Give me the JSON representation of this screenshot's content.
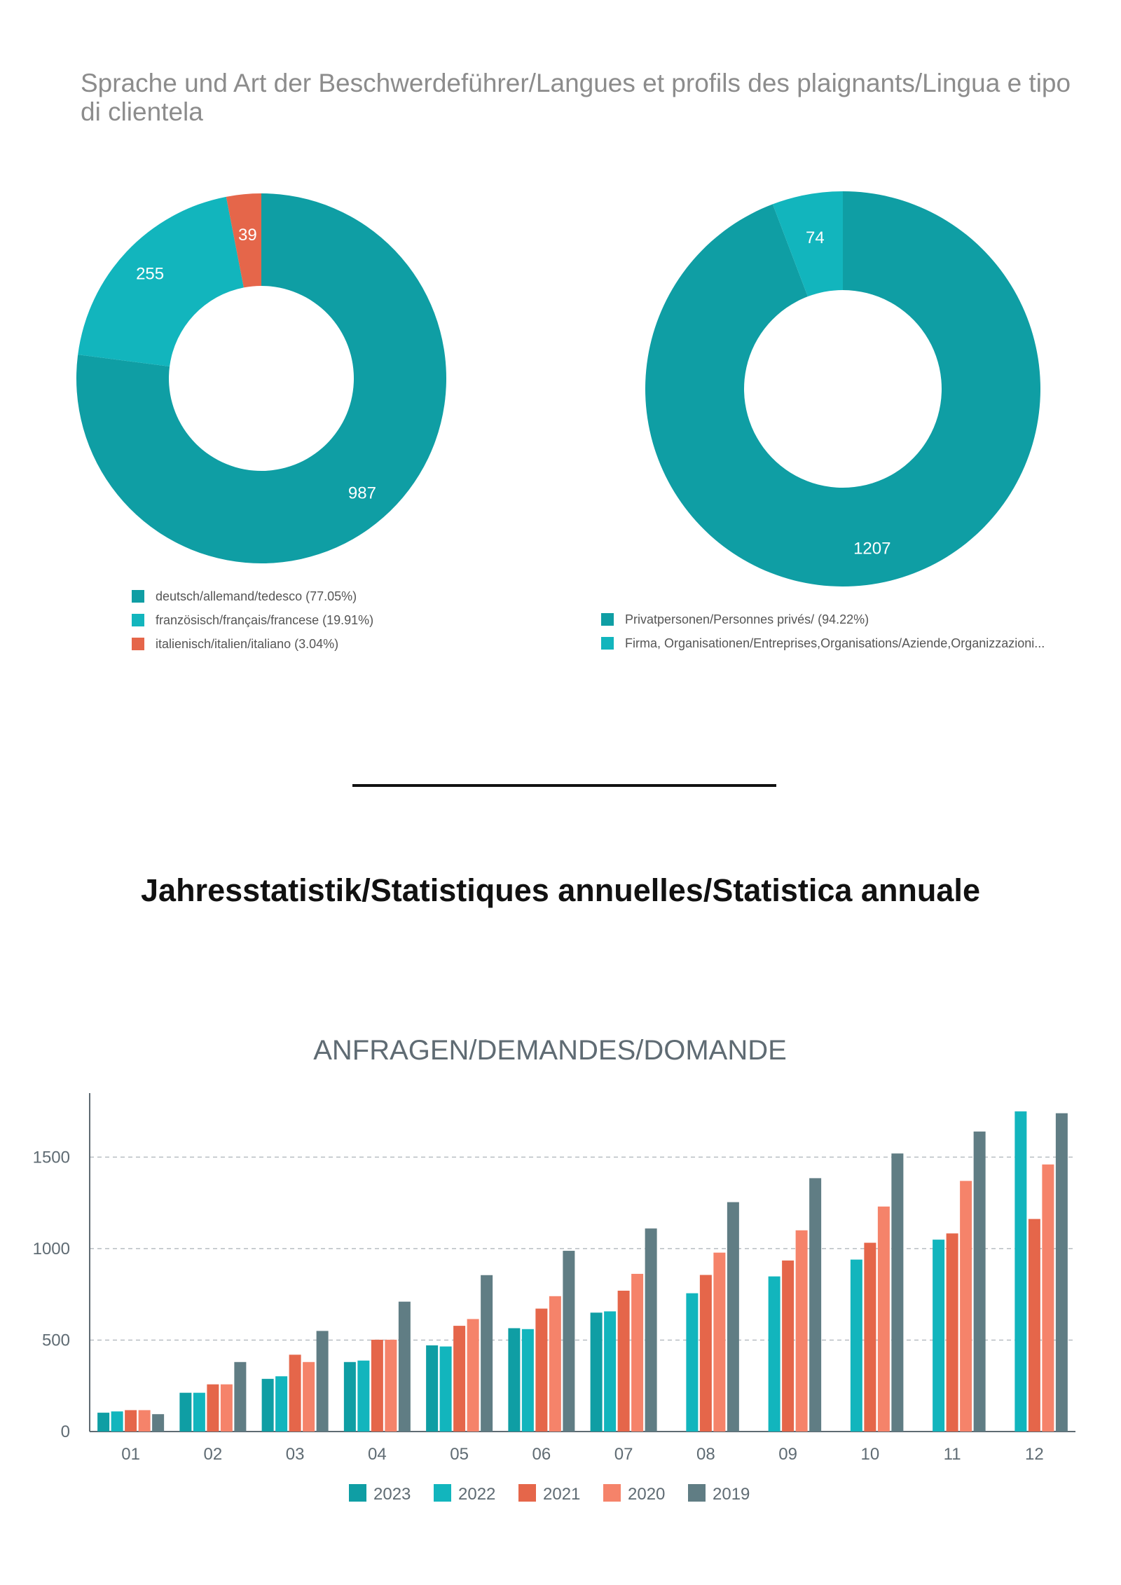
{
  "page": {
    "title": "Sprache und Art der Beschwerdeführer/Langues et profils des plaignants/Lingua e tipo di clientela",
    "section_heading": "Jahresstatistik/Statistiques annuelles/Statistica annuale"
  },
  "chart_data": [
    {
      "type": "pie",
      "donut": true,
      "slices": [
        {
          "label": "deutsch/allemand/tedesco (77.05%)",
          "value": 987,
          "color": "#0f9ea4"
        },
        {
          "label": "französisch/français/francese (19.91%)",
          "value": 255,
          "color": "#12b5bd"
        },
        {
          "label": "italienisch/italien/italiano (3.04%)",
          "value": 39,
          "color": "#e5664a"
        }
      ],
      "legend": "bottom"
    },
    {
      "type": "pie",
      "donut": true,
      "slices": [
        {
          "label": "Privatpersonen/Personnes privés/ (94.22%)",
          "value": 1207,
          "color": "#0f9ea4"
        },
        {
          "label": "Firma, Organisationen/Entreprises,Organisations/Aziende,Organizzazioni...",
          "value": 74,
          "color": "#12b5bd"
        }
      ],
      "legend": "bottom"
    },
    {
      "type": "bar",
      "title": "ANFRAGEN/DEMANDES/DOMANDE",
      "categories": [
        "01",
        "02",
        "03",
        "04",
        "05",
        "06",
        "07",
        "08",
        "09",
        "10",
        "11",
        "12"
      ],
      "series": [
        {
          "name": "2023",
          "color": "#0f9ea4",
          "values": [
            103,
            212,
            288,
            380,
            471,
            565,
            650,
            null,
            null,
            null,
            null,
            null
          ]
        },
        {
          "name": "2022",
          "color": "#12b5bd",
          "values": [
            110,
            212,
            302,
            388,
            465,
            560,
            657,
            756,
            848,
            940,
            1049,
            1750
          ]
        },
        {
          "name": "2021",
          "color": "#e5664a",
          "values": [
            117,
            258,
            420,
            502,
            578,
            672,
            770,
            856,
            935,
            1032,
            1083,
            1162
          ]
        },
        {
          "name": "2020",
          "color": "#f5836a",
          "values": [
            117,
            258,
            380,
            502,
            615,
            740,
            862,
            978,
            1100,
            1230,
            1370,
            1460
          ]
        },
        {
          "name": "2019",
          "color": "#607d84",
          "values": [
            95,
            380,
            550,
            710,
            855,
            988,
            1110,
            1254,
            1385,
            1520,
            1640,
            1740
          ]
        }
      ],
      "yticks": [
        0,
        500,
        1000,
        1500
      ],
      "ylim": [
        0,
        1850
      ],
      "grid": true,
      "legend": "bottom"
    }
  ]
}
